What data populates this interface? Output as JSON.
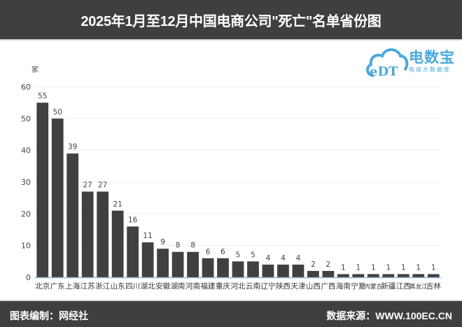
{
  "header": {
    "title": "2025年1月至12月中国电商公司\"死亡\"名单省份图"
  },
  "logo": {
    "brand": "电数宝",
    "sub": "电商大数据库",
    "mark": "eDT"
  },
  "footer": {
    "left": "图表编制：网经社",
    "right": "数据来源：WWW.100EC.CN"
  },
  "colors": {
    "bar": "#404040",
    "header_bg": "#3f3f3f",
    "axis": "#8fb4cc",
    "grid": "#eeeeee",
    "logo": "#4aa8dc"
  },
  "chart_data": {
    "type": "bar",
    "title": "2025年1月至12月中国电商公司\"死亡\"名单省份图",
    "xlabel": "",
    "ylabel": "家",
    "ylim": [
      0,
      60
    ],
    "yticks": [
      0,
      10,
      20,
      30,
      40,
      50,
      60
    ],
    "grid": true,
    "legend": null,
    "categories": [
      "北京",
      "广东",
      "上海",
      "江苏",
      "浙江",
      "山东",
      "四川",
      "湖北",
      "安徽",
      "湖南",
      "河南",
      "福建",
      "重庆",
      "河北",
      "云南",
      "辽宁",
      "陕西",
      "天津",
      "山西",
      "广西",
      "海南",
      "宁夏",
      "内蒙古",
      "新疆",
      "江西",
      "黑龙江",
      "吉林"
    ],
    "values": [
      55,
      50,
      39,
      27,
      27,
      21,
      16,
      11,
      9,
      8,
      8,
      6,
      6,
      5,
      5,
      4,
      4,
      4,
      2,
      2,
      1,
      1,
      1,
      1,
      1,
      1,
      1
    ]
  }
}
